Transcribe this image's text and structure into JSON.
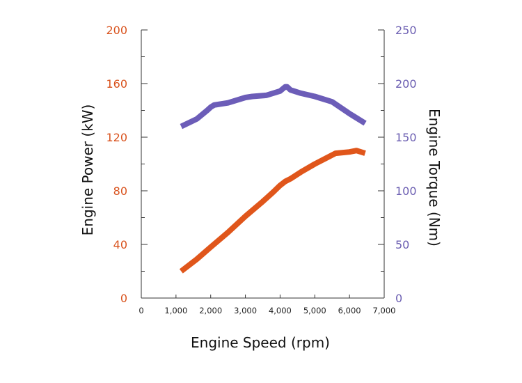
{
  "chart_data": {
    "type": "line",
    "title": "",
    "xlabel": "Engine Speed (rpm)",
    "ylabel_left": "Engine Power (kW)",
    "ylabel_right": "Engine Torque (Nm)",
    "xlim": [
      0,
      7000
    ],
    "ylim_left": [
      0,
      200
    ],
    "ylim_right": [
      0,
      250
    ],
    "x_ticks": [
      "0",
      "1,000",
      "2,000",
      "3,000",
      "4,000",
      "5,000",
      "6,000",
      "7,000"
    ],
    "y_left_ticks": [
      "0",
      "40",
      "80",
      "120",
      "160",
      "200"
    ],
    "y_right_ticks": [
      "0",
      "50",
      "100",
      "150",
      "200",
      "250"
    ],
    "grid": false,
    "series": [
      {
        "axis": "left",
        "color": "#e0561b",
        "points": [
          [
            1150,
            20
          ],
          [
            1600,
            29
          ],
          [
            2000,
            38
          ],
          [
            2500,
            49
          ],
          [
            3000,
            61
          ],
          [
            3500,
            72
          ],
          [
            3800,
            79
          ],
          [
            4000,
            84
          ],
          [
            4150,
            87
          ],
          [
            4300,
            89
          ],
          [
            4600,
            94
          ],
          [
            5000,
            100
          ],
          [
            5300,
            104
          ],
          [
            5600,
            108
          ],
          [
            6000,
            109
          ],
          [
            6200,
            110
          ],
          [
            6450,
            108
          ]
        ]
      },
      {
        "axis": "right",
        "color": "#6c5db8",
        "points": [
          [
            1150,
            160
          ],
          [
            1600,
            167
          ],
          [
            1900,
            175
          ],
          [
            2000,
            178
          ],
          [
            2100,
            180
          ],
          [
            2500,
            182
          ],
          [
            3000,
            187
          ],
          [
            3200,
            188
          ],
          [
            3600,
            189
          ],
          [
            4000,
            193
          ],
          [
            4150,
            197
          ],
          [
            4200,
            197
          ],
          [
            4300,
            194
          ],
          [
            4600,
            191
          ],
          [
            5000,
            188
          ],
          [
            5500,
            183
          ],
          [
            6000,
            172
          ],
          [
            6450,
            163
          ]
        ]
      }
    ]
  }
}
